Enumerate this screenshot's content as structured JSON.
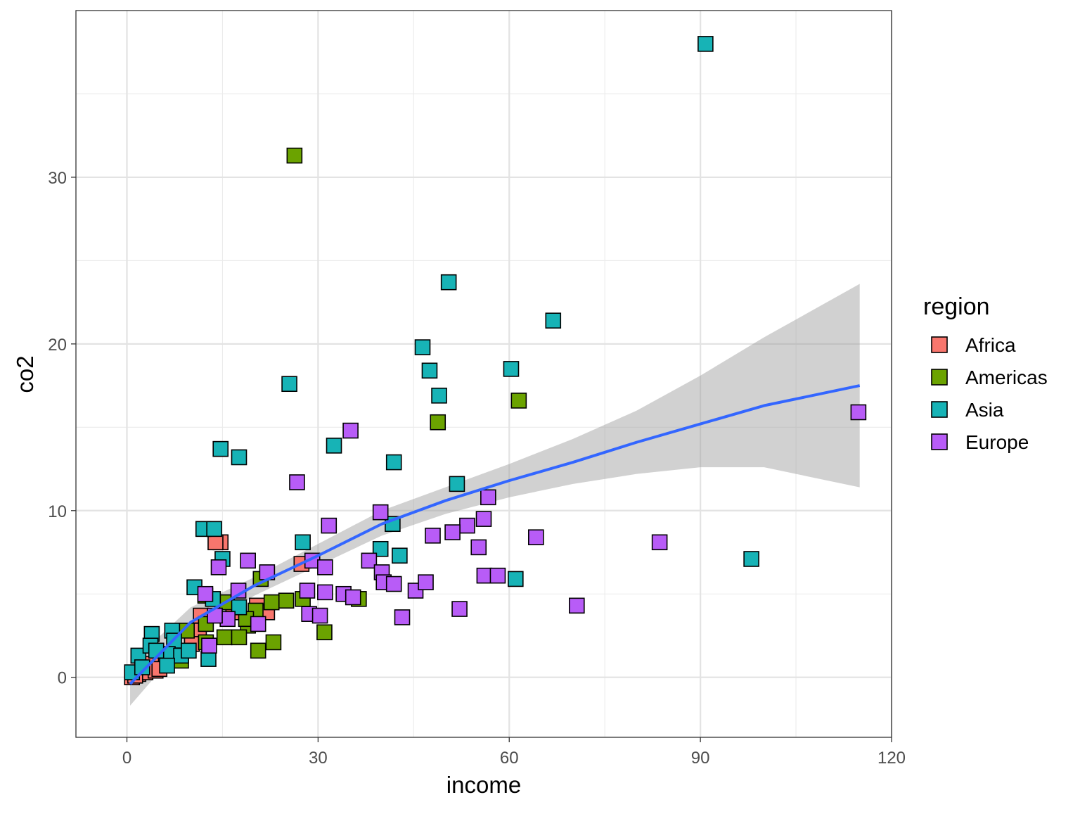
{
  "chart_data": {
    "type": "scatter",
    "xlabel": "income",
    "ylabel": "co2",
    "xlim": [
      -8,
      120
    ],
    "ylim": [
      -3.6,
      40
    ],
    "x_ticks": [
      "0",
      "30",
      "60",
      "90",
      "120"
    ],
    "y_ticks": [
      "0",
      "10",
      "20",
      "30"
    ],
    "x_tick_values": [
      0,
      30,
      60,
      90,
      120
    ],
    "y_tick_values": [
      0,
      10,
      20,
      30
    ],
    "grid": true,
    "marker": "filled-square",
    "legend": {
      "title": "region",
      "placement": "right"
    },
    "series": [
      {
        "name": "Africa",
        "color": "#F8766D",
        "points": [
          [
            14.7,
            8.1
          ],
          [
            13.9,
            8.1
          ],
          [
            27.4,
            6.8
          ],
          [
            11.6,
            3.7
          ],
          [
            11.3,
            2.8
          ],
          [
            20.4,
            4.3
          ],
          [
            22.0,
            3.9
          ],
          [
            10.2,
            2.0
          ],
          [
            16.7,
            3.9
          ],
          [
            18.9,
            3.5
          ],
          [
            3.8,
            0.8
          ],
          [
            0.8,
            0.0
          ],
          [
            1.8,
            0.2
          ],
          [
            2.9,
            0.3
          ],
          [
            1.3,
            0.1
          ],
          [
            4.5,
            0.4
          ],
          [
            5.1,
            0.5
          ]
        ]
      },
      {
        "name": "Americas",
        "color": "#6BA300",
        "points": [
          [
            26.3,
            31.3
          ],
          [
            61.5,
            16.6
          ],
          [
            48.8,
            15.3
          ],
          [
            21.0,
            5.9
          ],
          [
            12.3,
            4.9
          ],
          [
            15.7,
            4.5
          ],
          [
            25.0,
            4.6
          ],
          [
            27.6,
            4.7
          ],
          [
            36.4,
            4.7
          ],
          [
            22.7,
            4.5
          ],
          [
            20.2,
            4.0
          ],
          [
            19.0,
            3.1
          ],
          [
            31.0,
            2.7
          ],
          [
            23.0,
            2.1
          ],
          [
            20.6,
            1.6
          ],
          [
            12.4,
            2.1
          ],
          [
            15.3,
            2.4
          ],
          [
            17.6,
            2.4
          ],
          [
            12.4,
            3.2
          ],
          [
            9.4,
            2.8
          ],
          [
            8.5,
            1.0
          ],
          [
            18.7,
            3.5
          ]
        ]
      },
      {
        "name": "Asia",
        "color": "#17B3B6",
        "points": [
          [
            90.8,
            38.0
          ],
          [
            50.5,
            23.7
          ],
          [
            66.9,
            21.4
          ],
          [
            46.4,
            19.8
          ],
          [
            47.5,
            18.4
          ],
          [
            60.3,
            18.5
          ],
          [
            49.0,
            16.9
          ],
          [
            25.5,
            17.6
          ],
          [
            14.7,
            13.7
          ],
          [
            17.6,
            13.2
          ],
          [
            32.5,
            13.9
          ],
          [
            41.9,
            12.9
          ],
          [
            51.8,
            11.6
          ],
          [
            41.7,
            9.2
          ],
          [
            12.0,
            8.9
          ],
          [
            13.7,
            8.9
          ],
          [
            27.6,
            8.1
          ],
          [
            15.0,
            7.1
          ],
          [
            39.8,
            7.7
          ],
          [
            42.8,
            7.3
          ],
          [
            98.0,
            7.1
          ],
          [
            61.0,
            5.9
          ],
          [
            10.6,
            5.4
          ],
          [
            13.5,
            4.7
          ],
          [
            17.6,
            4.2
          ],
          [
            3.9,
            2.6
          ],
          [
            7.1,
            2.8
          ],
          [
            7.4,
            2.2
          ],
          [
            6.4,
            1.4
          ],
          [
            8.5,
            1.3
          ],
          [
            12.8,
            1.1
          ],
          [
            1.8,
            1.3
          ],
          [
            3.7,
            1.9
          ],
          [
            0.8,
            0.3
          ],
          [
            2.4,
            0.6
          ],
          [
            6.3,
            0.7
          ],
          [
            9.7,
            1.6
          ],
          [
            4.6,
            1.6
          ]
        ]
      },
      {
        "name": "Europe",
        "color": "#B85CF7",
        "points": [
          [
            114.8,
            15.9
          ],
          [
            35.1,
            14.8
          ],
          [
            26.7,
            11.7
          ],
          [
            56.7,
            10.8
          ],
          [
            39.8,
            9.9
          ],
          [
            31.7,
            9.1
          ],
          [
            56.0,
            9.5
          ],
          [
            53.4,
            9.1
          ],
          [
            48.0,
            8.5
          ],
          [
            51.1,
            8.7
          ],
          [
            64.2,
            8.4
          ],
          [
            83.6,
            8.1
          ],
          [
            55.2,
            7.8
          ],
          [
            19.0,
            7.0
          ],
          [
            14.4,
            6.6
          ],
          [
            29.1,
            7.0
          ],
          [
            38.0,
            7.0
          ],
          [
            22.0,
            6.3
          ],
          [
            31.1,
            6.6
          ],
          [
            40.0,
            6.3
          ],
          [
            56.1,
            6.1
          ],
          [
            58.2,
            6.1
          ],
          [
            17.5,
            5.2
          ],
          [
            28.3,
            5.2
          ],
          [
            31.1,
            5.1
          ],
          [
            34.0,
            5.0
          ],
          [
            35.5,
            4.8
          ],
          [
            40.3,
            5.7
          ],
          [
            41.9,
            5.6
          ],
          [
            45.3,
            5.2
          ],
          [
            46.9,
            5.7
          ],
          [
            12.3,
            5.0
          ],
          [
            15.8,
            3.5
          ],
          [
            20.6,
            3.2
          ],
          [
            28.6,
            3.8
          ],
          [
            30.3,
            3.7
          ],
          [
            43.2,
            3.6
          ],
          [
            52.2,
            4.1
          ],
          [
            70.6,
            4.3
          ],
          [
            13.8,
            3.7
          ],
          [
            12.9,
            1.9
          ]
        ]
      }
    ],
    "smooth": {
      "color": "#3366FF",
      "ribbon_color": "#999999",
      "x": [
        0.5,
        10,
        20,
        30,
        40,
        50,
        60,
        70,
        80,
        90,
        100,
        115
      ],
      "y": [
        -0.4,
        3.3,
        5.5,
        7.3,
        9.2,
        10.6,
        11.8,
        12.9,
        14.1,
        15.2,
        16.3,
        17.5
      ],
      "lower": [
        -1.7,
        2.5,
        4.9,
        6.7,
        8.5,
        9.8,
        10.8,
        11.6,
        12.2,
        12.6,
        12.6,
        11.4
      ],
      "upper": [
        0.8,
        4.2,
        6.0,
        8.0,
        10.0,
        11.4,
        12.8,
        14.3,
        16.0,
        18.1,
        20.4,
        23.6
      ]
    }
  }
}
